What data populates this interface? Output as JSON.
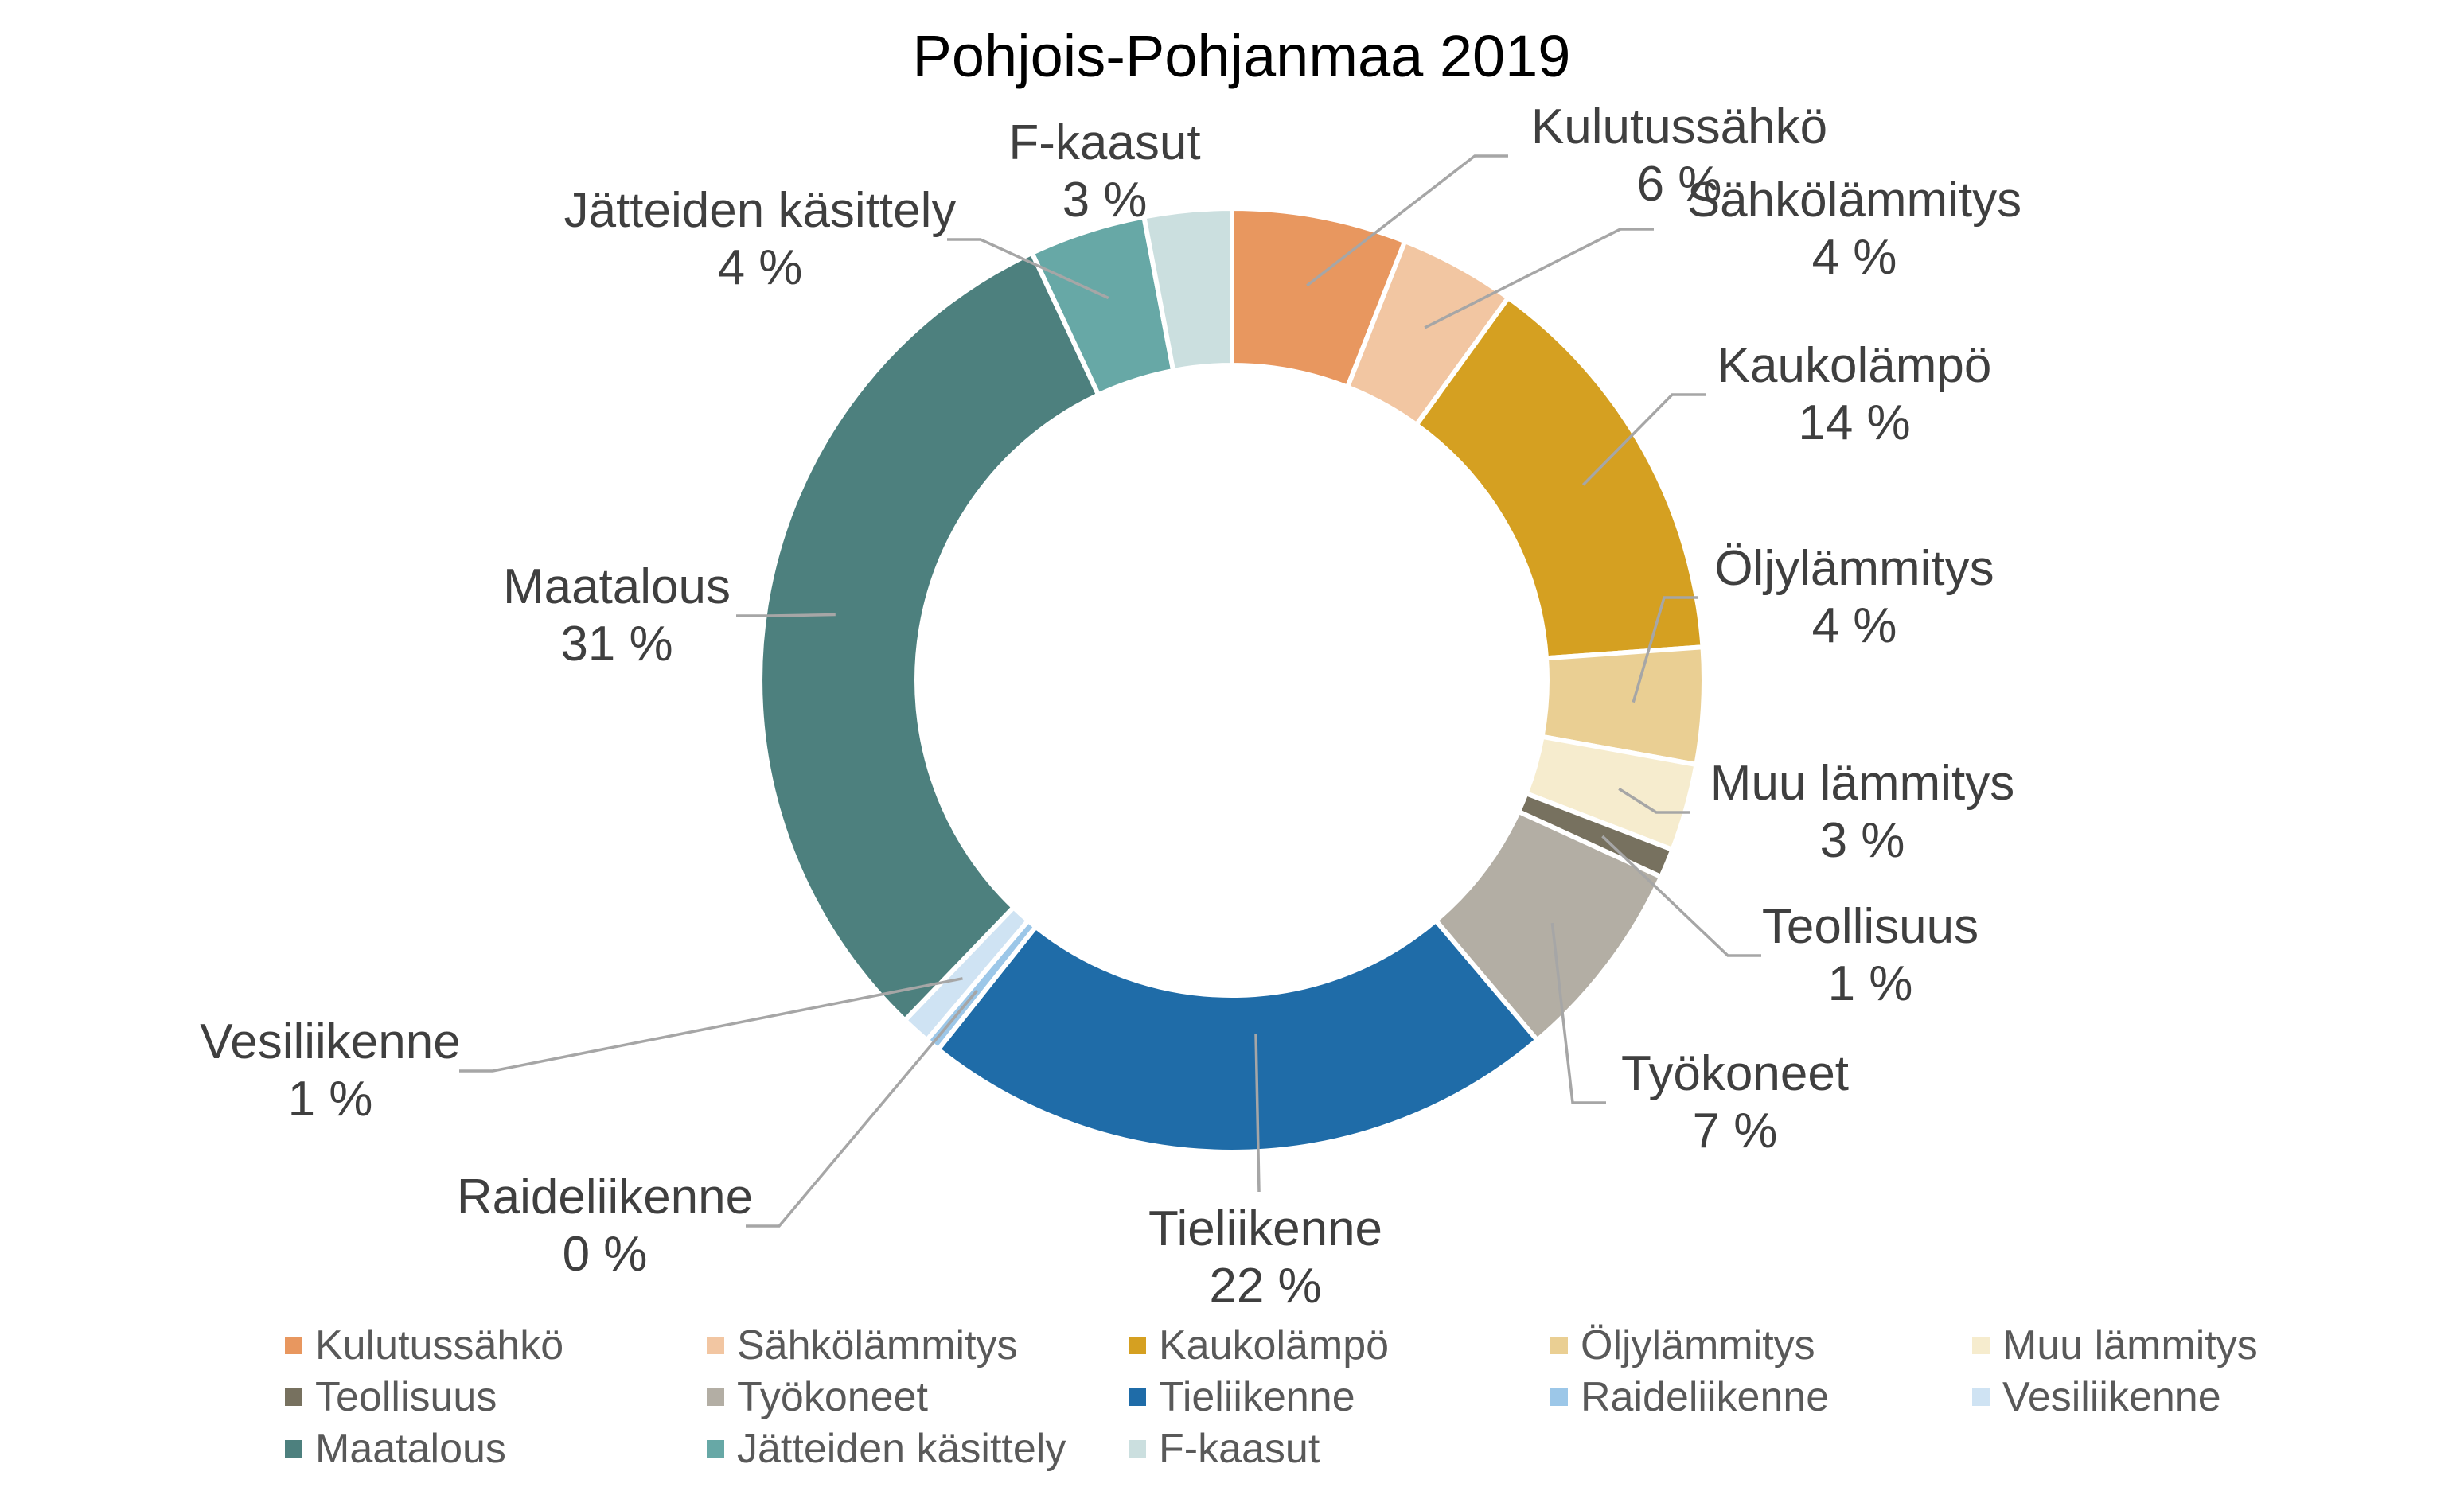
{
  "title": "Pohjois-Pohjanmaa 2019",
  "chart_data": {
    "type": "pie",
    "subtype": "donut",
    "title": "Pohjois-Pohjanmaa 2019",
    "value_unit": "%",
    "start_angle_deg": 0,
    "direction": "clockwise",
    "legend_position": "bottom",
    "grid": false,
    "series": [
      {
        "label": "Kulutussähkö",
        "value": 6,
        "pct_label": "6 %",
        "color": "#E8975F"
      },
      {
        "label": "Sähkölämmitys",
        "value": 4,
        "pct_label": "4 %",
        "color": "#F2C6A2"
      },
      {
        "label": "Kaukolämpö",
        "value": 14,
        "pct_label": "14 %",
        "color": "#D5A021"
      },
      {
        "label": "Öljylämmitys",
        "value": 4,
        "pct_label": "4 %",
        "color": "#EACF93"
      },
      {
        "label": "Muu lämmitys",
        "value": 3,
        "pct_label": "3 %",
        "color": "#F6ECCE"
      },
      {
        "label": "Teollisuus",
        "value": 1,
        "pct_label": "1 %",
        "color": "#77715F"
      },
      {
        "label": "Työkoneet",
        "value": 7,
        "pct_label": "7 %",
        "color": "#B3AEA4"
      },
      {
        "label": "Tieliikenne",
        "value": 22,
        "pct_label": "22 %",
        "color": "#1F6CA8"
      },
      {
        "label": "Raideliikenne",
        "value": 0,
        "pct_label": "0 %",
        "color": "#9CC7E8"
      },
      {
        "label": "Vesiliikenne",
        "value": 1,
        "pct_label": "1 %",
        "color": "#CFE3F3"
      },
      {
        "label": "Maatalous",
        "value": 31,
        "pct_label": "31 %",
        "color": "#4D807E"
      },
      {
        "label": "Jätteiden käsittely",
        "value": 4,
        "pct_label": "4 %",
        "color": "#67A8A6"
      },
      {
        "label": "F-kaasut",
        "value": 3,
        "pct_label": "3 %",
        "color": "#CBDFDF"
      }
    ],
    "colors": {
      "background": "#FFFFFF",
      "title_text": "#000000",
      "callout_text": "#3F3F3F",
      "legend_text": "#595959",
      "leader_line": "#A6A6A6",
      "slice_border": "#FFFFFF"
    }
  }
}
